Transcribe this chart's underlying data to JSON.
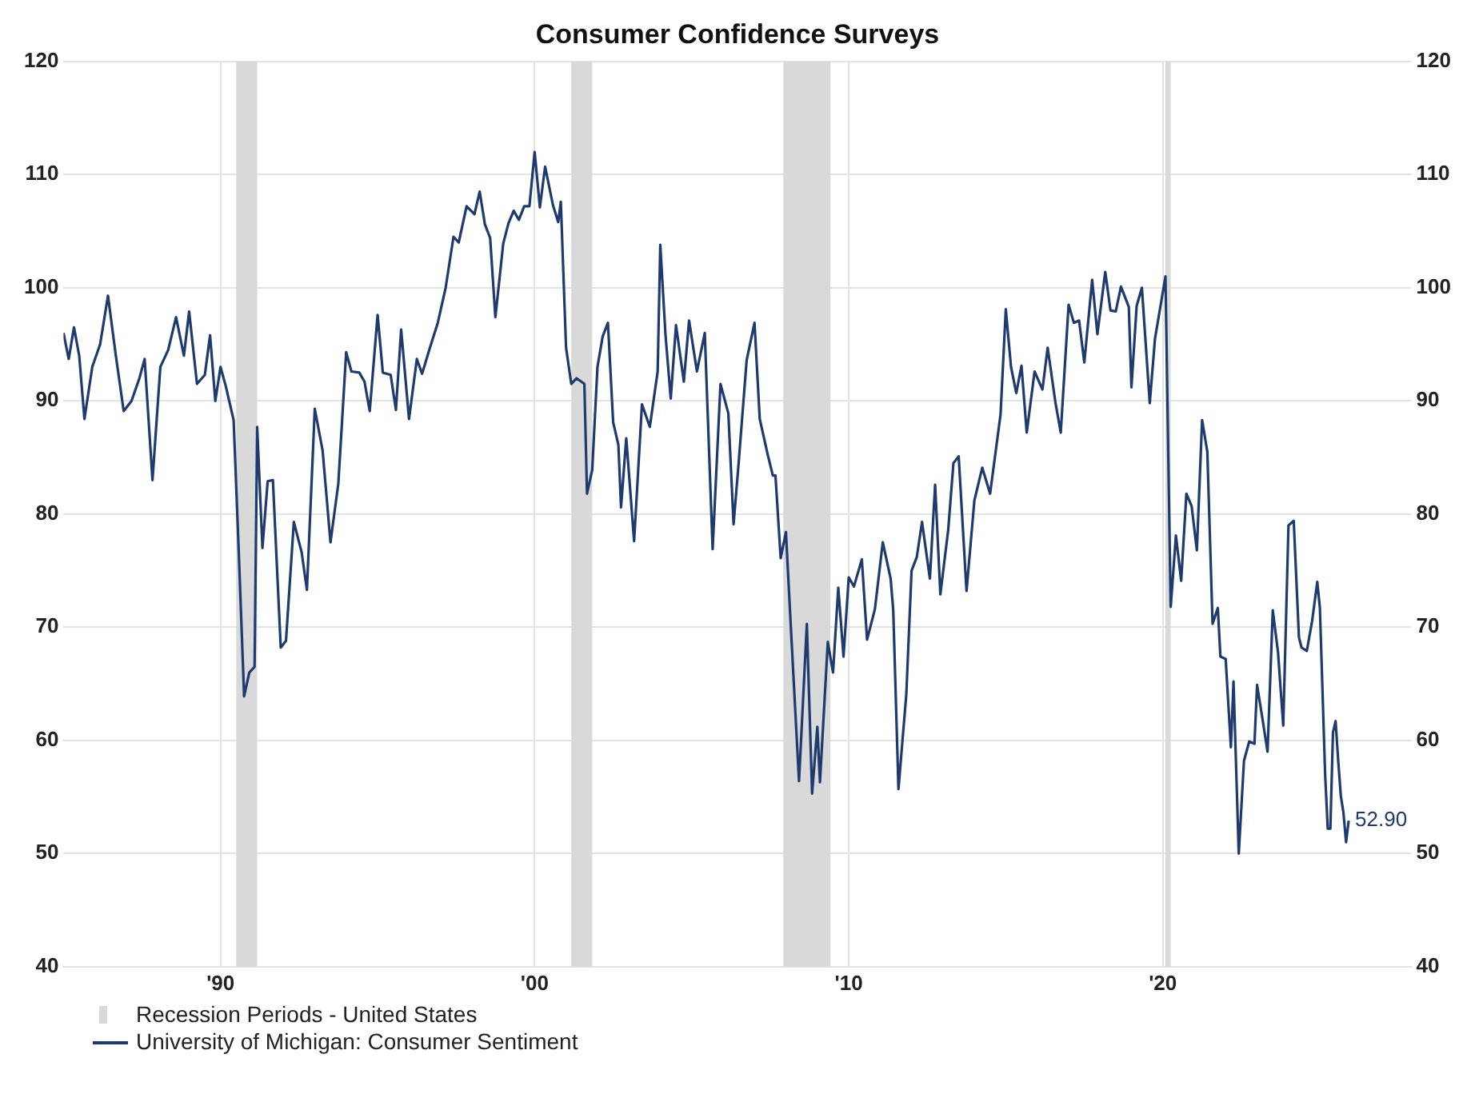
{
  "chart_data": {
    "type": "line",
    "title": "Consumer Confidence Surveys",
    "x": [
      "1985-01",
      "1985-03",
      "1985-05",
      "1985-07",
      "1985-09",
      "1985-12",
      "1986-03",
      "1986-06",
      "1986-09",
      "1986-12",
      "1987-03",
      "1987-06",
      "1987-08",
      "1987-11",
      "1988-02",
      "1988-05",
      "1988-08",
      "1988-11",
      "1989-01",
      "1989-04",
      "1989-07",
      "1989-09",
      "1989-11",
      "1990-01",
      "1990-03",
      "1990-06",
      "1990-08",
      "1990-10",
      "1990-12",
      "1991-02",
      "1991-03",
      "1991-05",
      "1991-07",
      "1991-09",
      "1991-12",
      "1992-02",
      "1992-05",
      "1992-08",
      "1992-10",
      "1993-01",
      "1993-04",
      "1993-07",
      "1993-10",
      "1994-01",
      "1994-03",
      "1994-06",
      "1994-08",
      "1994-10",
      "1995-01",
      "1995-03",
      "1995-06",
      "1995-08",
      "1995-10",
      "1996-01",
      "1996-04",
      "1996-06",
      "1996-09",
      "1996-12",
      "1997-03",
      "1997-06",
      "1997-08",
      "1997-11",
      "1998-02",
      "1998-04",
      "1998-06",
      "1998-08",
      "1998-10",
      "1999-01",
      "1999-03",
      "1999-05",
      "1999-07",
      "1999-09",
      "1999-11",
      "2000-01",
      "2000-03",
      "2000-05",
      "2000-08",
      "2000-10",
      "2000-11",
      "2001-01",
      "2001-03",
      "2001-05",
      "2001-08",
      "2001-09",
      "2001-11",
      "2002-01",
      "2002-03",
      "2002-05",
      "2002-07",
      "2002-09",
      "2002-10",
      "2002-12",
      "2003-03",
      "2003-06",
      "2003-09",
      "2003-12",
      "2004-01",
      "2004-03",
      "2004-05",
      "2004-07",
      "2004-10",
      "2004-12",
      "2005-03",
      "2005-06",
      "2005-09",
      "2005-12",
      "2006-03",
      "2006-05",
      "2006-07",
      "2006-10",
      "2007-01",
      "2007-03",
      "2007-06",
      "2007-08",
      "2007-09",
      "2007-11",
      "2008-01",
      "2008-03",
      "2008-06",
      "2008-09",
      "2008-11",
      "2009-01",
      "2009-02",
      "2009-05",
      "2009-07",
      "2009-09",
      "2009-11",
      "2010-01",
      "2010-03",
      "2010-06",
      "2010-08",
      "2010-11",
      "2011-02",
      "2011-05",
      "2011-06",
      "2011-08",
      "2011-11",
      "2012-01",
      "2012-03",
      "2012-05",
      "2012-08",
      "2012-10",
      "2012-12",
      "2013-03",
      "2013-05",
      "2013-07",
      "2013-10",
      "2014-01",
      "2014-04",
      "2014-07",
      "2014-11",
      "2015-01",
      "2015-03",
      "2015-05",
      "2015-07",
      "2015-09",
      "2015-12",
      "2016-03",
      "2016-05",
      "2016-08",
      "2016-10",
      "2017-01",
      "2017-03",
      "2017-05",
      "2017-07",
      "2017-10",
      "2017-12",
      "2018-03",
      "2018-05",
      "2018-07",
      "2018-09",
      "2018-12",
      "2019-01",
      "2019-03",
      "2019-05",
      "2019-08",
      "2019-10",
      "2020-02",
      "2020-04",
      "2020-06",
      "2020-08",
      "2020-10",
      "2020-12",
      "2021-02",
      "2021-04",
      "2021-06",
      "2021-08",
      "2021-10",
      "2021-11",
      "2022-01",
      "2022-03",
      "2022-04",
      "2022-06",
      "2022-08",
      "2022-10",
      "2022-12",
      "2023-01",
      "2023-03",
      "2023-05",
      "2023-07",
      "2023-09",
      "2023-11",
      "2024-01",
      "2024-03",
      "2024-05",
      "2024-06",
      "2024-08",
      "2024-10",
      "2024-12",
      "2025-01",
      "2025-03",
      "2025-04",
      "2025-05",
      "2025-06",
      "2025-07",
      "2025-08",
      "2025-09",
      "2025-10",
      "2025-11",
      "2025-12"
    ],
    "series": [
      {
        "name": "University of Michigan: Consumer Sentiment",
        "color": "#1f3a6e",
        "values": [
          96,
          93.7,
          96.5,
          94,
          88.4,
          93,
          95,
          99.3,
          94,
          89.1,
          90,
          92,
          93.7,
          83,
          93,
          94.5,
          97.4,
          94,
          97.9,
          91.5,
          92.3,
          95.8,
          90,
          93,
          91.3,
          88.3,
          76.4,
          63.9,
          66,
          66.5,
          87.7,
          77,
          82.9,
          83,
          68.2,
          68.8,
          79.3,
          76.6,
          73.3,
          89.3,
          85.6,
          77.5,
          82.7,
          94.3,
          92.6,
          92.5,
          91.7,
          89.1,
          97.6,
          92.5,
          92.3,
          89.2,
          96.3,
          88.4,
          93.7,
          92.4,
          94.7,
          96.9,
          100,
          104.5,
          104,
          107.2,
          106.5,
          108.5,
          105.6,
          104.4,
          97.4,
          103.9,
          105.7,
          106.8,
          106,
          107.2,
          107.2,
          112,
          107.1,
          110.7,
          107.3,
          105.8,
          107.6,
          94.7,
          91.5,
          92,
          91.5,
          81.8,
          83.9,
          93,
          95.7,
          96.9,
          88.1,
          86.1,
          80.6,
          86.7,
          77.6,
          89.7,
          87.7,
          92.6,
          103.8,
          95.8,
          90.2,
          96.7,
          91.7,
          97.1,
          92.6,
          96,
          76.9,
          91.5,
          88.9,
          79.1,
          84.7,
          93.6,
          96.9,
          88.4,
          85.3,
          83.4,
          83.4,
          76.1,
          78.4,
          69.5,
          56.4,
          70.3,
          55.3,
          61.2,
          56.3,
          68.7,
          66,
          73.5,
          67.4,
          74.4,
          73.6,
          76,
          68.9,
          71.6,
          77.5,
          74.3,
          71.5,
          55.7,
          64.1,
          75,
          76.2,
          79.3,
          74.3,
          82.6,
          72.9,
          78.6,
          84.5,
          85.1,
          73.2,
          81.2,
          84.1,
          81.8,
          88.8,
          98.1,
          93,
          90.7,
          93.1,
          87.2,
          92.6,
          91,
          94.7,
          89.8,
          87.2,
          98.5,
          96.9,
          97.1,
          93.4,
          100.7,
          95.9,
          101.4,
          98,
          97.9,
          100.1,
          98.3,
          91.2,
          98.4,
          100,
          89.8,
          95.5,
          101,
          71.8,
          78.1,
          74.1,
          81.8,
          80.7,
          76.8,
          88.3,
          85.5,
          70.3,
          71.7,
          67.4,
          67.2,
          59.4,
          65.2,
          50,
          58.2,
          59.9,
          59.7,
          64.9,
          62,
          59,
          71.5,
          67.8,
          61.3,
          79,
          79.4,
          69.1,
          68.2,
          67.9,
          70.5,
          74,
          71.7,
          57,
          52.2,
          52.2,
          60.7,
          61.7,
          58.2,
          55.1,
          53.6,
          51,
          52.9
        ]
      }
    ],
    "xlim": [
      "1985-01",
      "2027-12"
    ],
    "xticks": [
      {
        "value": "1990-01",
        "label": "'90"
      },
      {
        "value": "2000-01",
        "label": "'00"
      },
      {
        "value": "2010-01",
        "label": "'10"
      },
      {
        "value": "2020-01",
        "label": "'20"
      }
    ],
    "ylim": [
      40,
      120
    ],
    "yticks": [
      40,
      50,
      60,
      70,
      80,
      90,
      100,
      110,
      120
    ],
    "y2lim": [
      40,
      120
    ],
    "y2ticks": [
      40,
      50,
      60,
      70,
      80,
      90,
      100,
      110,
      120
    ],
    "bands": [
      {
        "axis": "x",
        "from": "1990-07",
        "to": "1991-03",
        "label": "Recession Periods - United States",
        "color": "#d9d9d9"
      },
      {
        "axis": "x",
        "from": "2001-03",
        "to": "2001-11",
        "color": "#d9d9d9"
      },
      {
        "axis": "x",
        "from": "2007-12",
        "to": "2009-06",
        "color": "#d9d9d9"
      },
      {
        "axis": "x",
        "from": "2020-02",
        "to": "2020-04",
        "color": "#d9d9d9"
      }
    ],
    "annotations": [
      {
        "text": "52.90",
        "x": "2025-12",
        "y": 52.9
      }
    ],
    "grid": true,
    "legend": "bottom left",
    "marker": "none",
    "line_style": "solid"
  }
}
